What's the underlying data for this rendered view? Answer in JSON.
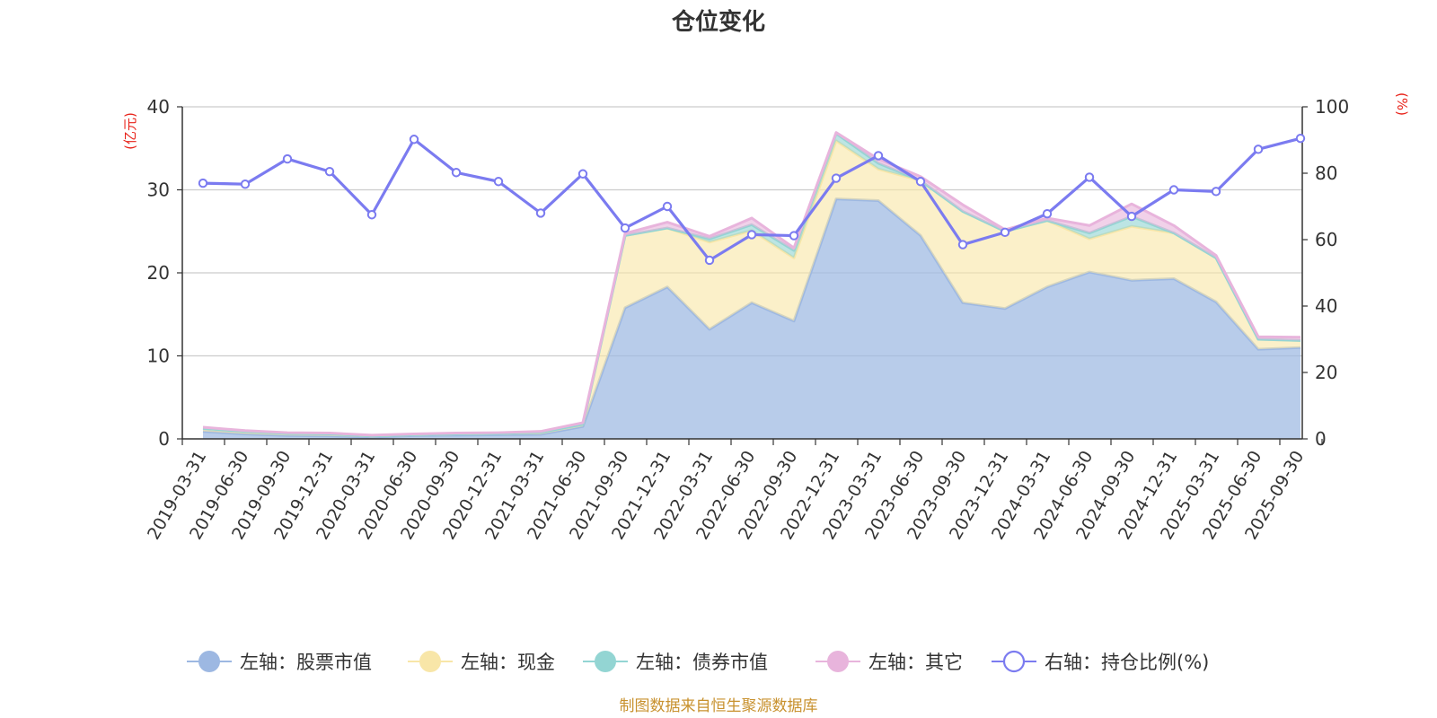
{
  "colors": {
    "stock": "#9db8e2",
    "cash": "#f8e6a8",
    "bond": "#93d5d3",
    "other": "#e8b4dc",
    "ratio": "#7b7bf0",
    "unit": "#e8231a",
    "source": "#c8912e"
  },
  "chart_data": {
    "type": "area",
    "title": "仓位变化",
    "left_unit": "(亿元)",
    "right_unit": "(%)",
    "source_note": "制图数据来自恒生聚源数据库",
    "y_left_range": [
      0,
      40
    ],
    "y_left_ticks": [
      "0",
      "10",
      "20",
      "30",
      "40"
    ],
    "y_right_range": [
      0,
      100
    ],
    "y_right_ticks": [
      "0",
      "20",
      "40",
      "60",
      "80",
      "100"
    ],
    "grid": true,
    "legend_position": "bottom",
    "categories": [
      "2019-03-31",
      "2019-06-30",
      "2019-09-30",
      "2019-12-31",
      "2020-03-31",
      "2020-06-30",
      "2020-09-30",
      "2020-12-31",
      "2021-03-31",
      "2021-06-30",
      "2021-09-30",
      "2021-12-31",
      "2022-03-31",
      "2022-06-30",
      "2022-09-30",
      "2022-12-31",
      "2023-03-31",
      "2023-06-30",
      "2023-09-30",
      "2023-12-31",
      "2024-03-31",
      "2024-06-30",
      "2024-09-30",
      "2024-12-31",
      "2025-03-31",
      "2025-06-30",
      "2025-09-30"
    ],
    "series": [
      {
        "name": "左轴：股票市值",
        "axis": "left",
        "stacked": true,
        "color": "#9db8e2",
        "values": [
          0.9,
          0.6,
          0.4,
          0.35,
          0.2,
          0.4,
          0.45,
          0.5,
          0.55,
          1.5,
          15.8,
          18.3,
          13.2,
          16.4,
          14.2,
          28.9,
          28.7,
          24.5,
          16.4,
          15.7,
          18.3,
          20.1,
          19.1,
          19.3,
          16.5,
          10.8,
          11.0
        ]
      },
      {
        "name": "左轴：现金",
        "axis": "left",
        "stacked": true,
        "color": "#f8e6a8",
        "values": [
          0.35,
          0.3,
          0.25,
          0.25,
          0.15,
          0.1,
          0.15,
          0.15,
          0.25,
          0.25,
          8.7,
          7.1,
          10.5,
          8.7,
          7.6,
          7.0,
          3.8,
          6.6,
          11.0,
          9.3,
          8.0,
          4.0,
          6.5,
          5.5,
          5.3,
          1.2,
          0.85
        ]
      },
      {
        "name": "左轴：债券市值",
        "axis": "left",
        "stacked": true,
        "color": "#93d5d3",
        "values": [
          0,
          0,
          0,
          0,
          0,
          0,
          0,
          0,
          0,
          0,
          0,
          0,
          0.4,
          0.7,
          0.9,
          0.9,
          0.7,
          0,
          0,
          0,
          0,
          0.7,
          1.2,
          0,
          0,
          0,
          0
        ]
      },
      {
        "name": "左轴：其它",
        "axis": "left",
        "stacked": true,
        "color": "#e8b4dc",
        "values": [
          0.15,
          0.1,
          0.1,
          0.1,
          0.1,
          0.1,
          0.1,
          0.1,
          0.1,
          0.2,
          0.25,
          0.7,
          0.3,
          0.8,
          0.3,
          0.1,
          0.5,
          0.5,
          0.8,
          0.2,
          0.3,
          0.9,
          1.5,
          0.9,
          0.3,
          0.3,
          0.4
        ]
      },
      {
        "name": "右轴：持仓比例(%)",
        "axis": "right",
        "type": "line",
        "color": "#7b7bf0",
        "values": [
          77,
          76.7,
          84.3,
          80.5,
          67.5,
          90.2,
          80.2,
          77.5,
          68,
          79.8,
          63.5,
          70,
          53.8,
          61.5,
          61.2,
          78.5,
          85.3,
          77.5,
          58.5,
          62.2,
          67.8,
          78.8,
          67,
          75,
          74.5,
          87.2,
          90.5
        ]
      }
    ]
  }
}
